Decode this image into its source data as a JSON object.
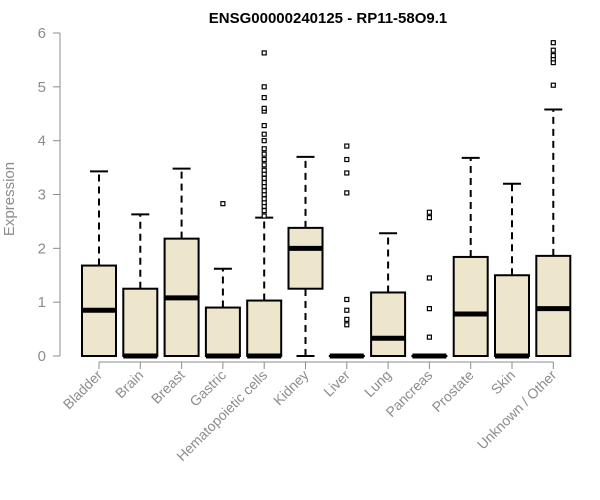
{
  "chart_data": {
    "type": "boxplot",
    "title": "ENSG00000240125 - RP11-58O9.1",
    "xlabel": "",
    "ylabel": "Expression",
    "ylim": [
      0,
      6
    ],
    "yticks": [
      "0",
      "1",
      "2",
      "3",
      "4",
      "5",
      "6"
    ],
    "grid": false,
    "box_fill": "#ede6cc",
    "categories": [
      "Bladder",
      "Brain",
      "Breast",
      "Gastric",
      "Hematopoietic cells",
      "Kidney",
      "Liver",
      "Lung",
      "Pancreas",
      "Prostate",
      "Skin",
      "Unknown / Other"
    ],
    "boxes": [
      {
        "min": 0.0,
        "q1": 0.0,
        "median": 0.85,
        "q3": 1.68,
        "max": 3.43,
        "outliers": []
      },
      {
        "min": 0.0,
        "q1": 0.0,
        "median": 0.0,
        "q3": 1.25,
        "max": 2.63,
        "outliers": []
      },
      {
        "min": 0.0,
        "q1": 0.0,
        "median": 1.08,
        "q3": 2.18,
        "max": 3.48,
        "outliers": []
      },
      {
        "min": 0.0,
        "q1": 0.0,
        "median": 0.0,
        "q3": 0.9,
        "max": 1.62,
        "outliers": [
          2.83
        ]
      },
      {
        "min": 0.0,
        "q1": 0.0,
        "median": 0.0,
        "q3": 1.03,
        "max": 2.57,
        "outliers": [
          2.6,
          2.7,
          2.78,
          2.85,
          2.92,
          3.0,
          3.07,
          3.15,
          3.22,
          3.3,
          3.38,
          3.45,
          3.55,
          3.65,
          3.75,
          3.85,
          4.0,
          4.12,
          4.28,
          4.55,
          4.6,
          4.8,
          5.0,
          5.63
        ]
      },
      {
        "min": 0.0,
        "q1": 1.25,
        "median": 2.0,
        "q3": 2.38,
        "max": 3.7,
        "outliers": []
      },
      {
        "min": 0.0,
        "q1": 0.0,
        "median": 0.0,
        "q3": 0.0,
        "max": 0.0,
        "outliers": [
          0.58,
          0.68,
          0.85,
          1.05,
          3.03,
          3.4,
          3.65,
          3.9
        ]
      },
      {
        "min": 0.0,
        "q1": 0.0,
        "median": 0.33,
        "q3": 1.18,
        "max": 2.28,
        "outliers": []
      },
      {
        "min": 0.0,
        "q1": 0.0,
        "median": 0.0,
        "q3": 0.0,
        "max": 0.0,
        "outliers": [
          0.35,
          0.88,
          1.45,
          2.57,
          2.67
        ]
      },
      {
        "min": 0.0,
        "q1": 0.0,
        "median": 0.78,
        "q3": 1.84,
        "max": 3.68,
        "outliers": []
      },
      {
        "min": 0.0,
        "q1": 0.0,
        "median": 0.0,
        "q3": 1.5,
        "max": 3.2,
        "outliers": []
      },
      {
        "min": 0.0,
        "q1": 0.0,
        "median": 0.88,
        "q3": 1.86,
        "max": 4.58,
        "outliers": [
          5.03,
          5.45,
          5.52,
          5.58,
          5.68,
          5.82
        ]
      }
    ]
  }
}
